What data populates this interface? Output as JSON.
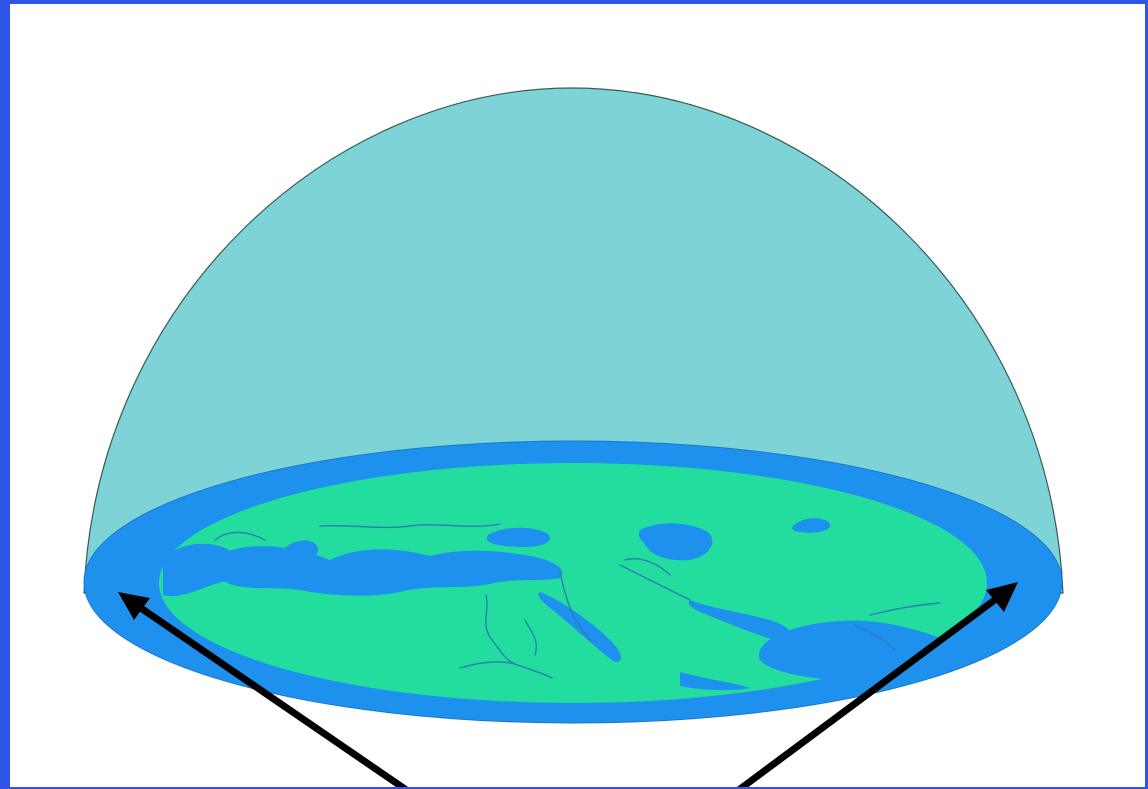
{
  "diagram": {
    "subject": "flat-earth-dome",
    "colors": {
      "frame_border": "#2f55e8",
      "background": "#ffffff",
      "dome_fill": "#7dd3d6",
      "dome_outline": "#3a5a5a",
      "ocean": "#1e90ee",
      "land": "#22dd9e",
      "inland_water": "#1e90ee",
      "rivers": "#2b7fb5",
      "arrow": "#000000"
    },
    "elements": [
      {
        "name": "dome",
        "icon": "dome-shape"
      },
      {
        "name": "flat-earth-disc",
        "icon": "disc-map"
      },
      {
        "name": "pointer-arrow-left",
        "icon": "arrow-up-left"
      },
      {
        "name": "pointer-arrow-right",
        "icon": "arrow-up-right"
      }
    ]
  }
}
